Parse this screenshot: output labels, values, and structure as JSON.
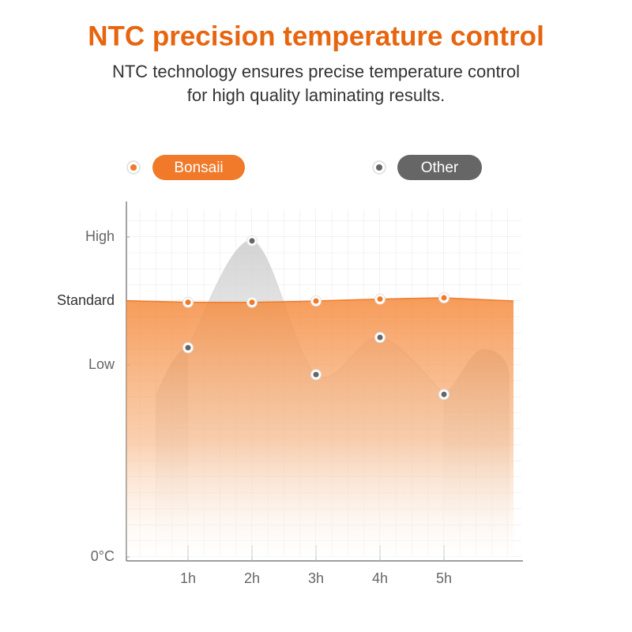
{
  "chart_data": {
    "type": "area",
    "title": "NTC precision temperature control",
    "subtitle": [
      "NTC technology ensures precise temperature control",
      "for high quality laminating results."
    ],
    "categories": [
      "1h",
      "2h",
      "3h",
      "4h",
      "5h"
    ],
    "series": [
      {
        "name": "Other",
        "color": "#666666",
        "values": [
          3.27,
          4.94,
          2.85,
          3.43,
          2.54
        ]
      },
      {
        "name": "Bonsaii",
        "color": "#f07a2a",
        "values": [
          3.98,
          3.98,
          4.0,
          4.03,
          4.05
        ]
      }
    ],
    "ylim": [
      0,
      5.5
    ],
    "yticks": [
      {
        "value": 0,
        "label": "0°C"
      },
      {
        "value": 3,
        "label": "Low"
      },
      {
        "value": 4,
        "label": "Standard"
      },
      {
        "value": 5,
        "label": "High"
      }
    ]
  }
}
